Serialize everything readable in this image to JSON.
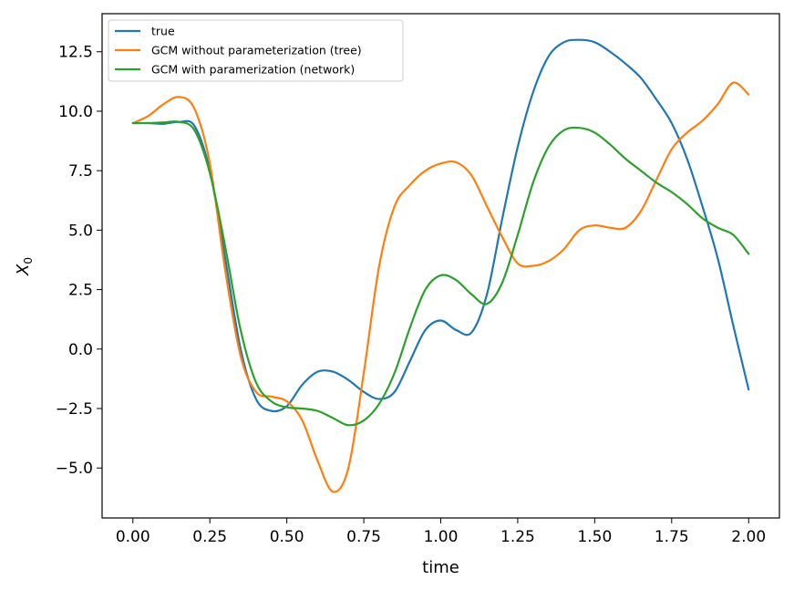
{
  "chart_data": {
    "type": "line",
    "title": "",
    "xlabel": "time",
    "ylabel": "X_0",
    "ylabel_main": "X",
    "ylabel_sub": "0",
    "xlim": [
      -0.1,
      2.1
    ],
    "ylim": [
      -7.1,
      14.1
    ],
    "xticks": [
      0.0,
      0.25,
      0.5,
      0.75,
      1.0,
      1.25,
      1.5,
      1.75,
      2.0
    ],
    "xtick_labels": [
      "0.00",
      "0.25",
      "0.50",
      "0.75",
      "1.00",
      "1.25",
      "1.50",
      "1.75",
      "2.00"
    ],
    "yticks": [
      -5.0,
      -2.5,
      0.0,
      2.5,
      5.0,
      7.5,
      10.0,
      12.5
    ],
    "ytick_labels": [
      "−5.0",
      "−2.5",
      "0.0",
      "2.5",
      "5.0",
      "7.5",
      "10.0",
      "12.5"
    ],
    "grid": false,
    "legend_position": "top-left",
    "series": [
      {
        "name": "true",
        "color": "#1f77b4",
        "points": [
          [
            0.0,
            9.5
          ],
          [
            0.05,
            9.5
          ],
          [
            0.1,
            9.47
          ],
          [
            0.15,
            9.55
          ],
          [
            0.2,
            9.38
          ],
          [
            0.25,
            7.5
          ],
          [
            0.3,
            3.8
          ],
          [
            0.35,
            0.0
          ],
          [
            0.4,
            -2.1
          ],
          [
            0.45,
            -2.6
          ],
          [
            0.5,
            -2.4
          ],
          [
            0.55,
            -1.5
          ],
          [
            0.6,
            -0.95
          ],
          [
            0.65,
            -0.95
          ],
          [
            0.7,
            -1.3
          ],
          [
            0.75,
            -1.8
          ],
          [
            0.8,
            -2.1
          ],
          [
            0.85,
            -1.8
          ],
          [
            0.9,
            -0.5
          ],
          [
            0.95,
            0.8
          ],
          [
            1.0,
            1.2
          ],
          [
            1.05,
            0.8
          ],
          [
            1.1,
            0.7
          ],
          [
            1.15,
            2.3
          ],
          [
            1.2,
            5.5
          ],
          [
            1.25,
            8.5
          ],
          [
            1.3,
            10.8
          ],
          [
            1.35,
            12.3
          ],
          [
            1.4,
            12.9
          ],
          [
            1.45,
            13.0
          ],
          [
            1.5,
            12.9
          ],
          [
            1.55,
            12.5
          ],
          [
            1.6,
            12.0
          ],
          [
            1.65,
            11.4
          ],
          [
            1.7,
            10.5
          ],
          [
            1.75,
            9.5
          ],
          [
            1.8,
            8.0
          ],
          [
            1.85,
            6.0
          ],
          [
            1.9,
            3.8
          ],
          [
            1.95,
            1.0
          ],
          [
            2.0,
            -1.7
          ]
        ]
      },
      {
        "name": "GCM without parameterization (tree)",
        "color": "#ff7f0e",
        "points": [
          [
            0.0,
            9.5
          ],
          [
            0.05,
            9.8
          ],
          [
            0.1,
            10.3
          ],
          [
            0.15,
            10.6
          ],
          [
            0.2,
            10.1
          ],
          [
            0.25,
            7.8
          ],
          [
            0.3,
            3.3
          ],
          [
            0.35,
            -0.3
          ],
          [
            0.4,
            -1.8
          ],
          [
            0.45,
            -2.0
          ],
          [
            0.5,
            -2.2
          ],
          [
            0.55,
            -3.0
          ],
          [
            0.6,
            -4.7
          ],
          [
            0.65,
            -6.0
          ],
          [
            0.7,
            -5.0
          ],
          [
            0.75,
            -1.0
          ],
          [
            0.8,
            3.5
          ],
          [
            0.85,
            6.0
          ],
          [
            0.9,
            6.9
          ],
          [
            0.95,
            7.5
          ],
          [
            1.0,
            7.8
          ],
          [
            1.05,
            7.85
          ],
          [
            1.1,
            7.3
          ],
          [
            1.15,
            6.0
          ],
          [
            1.2,
            4.7
          ],
          [
            1.25,
            3.6
          ],
          [
            1.3,
            3.5
          ],
          [
            1.35,
            3.7
          ],
          [
            1.4,
            4.2
          ],
          [
            1.45,
            5.0
          ],
          [
            1.5,
            5.2
          ],
          [
            1.55,
            5.1
          ],
          [
            1.6,
            5.1
          ],
          [
            1.65,
            5.8
          ],
          [
            1.7,
            7.1
          ],
          [
            1.75,
            8.4
          ],
          [
            1.8,
            9.1
          ],
          [
            1.85,
            9.6
          ],
          [
            1.9,
            10.3
          ],
          [
            1.95,
            11.2
          ],
          [
            2.0,
            10.7
          ]
        ]
      },
      {
        "name": "GCM with paramerization (network)",
        "color": "#2ca02c",
        "points": [
          [
            0.0,
            9.5
          ],
          [
            0.05,
            9.5
          ],
          [
            0.1,
            9.53
          ],
          [
            0.15,
            9.55
          ],
          [
            0.2,
            9.2
          ],
          [
            0.25,
            7.4
          ],
          [
            0.3,
            4.3
          ],
          [
            0.35,
            0.8
          ],
          [
            0.4,
            -1.4
          ],
          [
            0.45,
            -2.2
          ],
          [
            0.5,
            -2.45
          ],
          [
            0.55,
            -2.5
          ],
          [
            0.6,
            -2.6
          ],
          [
            0.65,
            -2.9
          ],
          [
            0.7,
            -3.2
          ],
          [
            0.75,
            -3.0
          ],
          [
            0.8,
            -2.3
          ],
          [
            0.85,
            -1.0
          ],
          [
            0.9,
            0.9
          ],
          [
            0.95,
            2.5
          ],
          [
            1.0,
            3.1
          ],
          [
            1.05,
            2.9
          ],
          [
            1.1,
            2.3
          ],
          [
            1.15,
            1.9
          ],
          [
            1.2,
            2.8
          ],
          [
            1.25,
            4.8
          ],
          [
            1.3,
            7.0
          ],
          [
            1.35,
            8.5
          ],
          [
            1.4,
            9.2
          ],
          [
            1.45,
            9.3
          ],
          [
            1.5,
            9.1
          ],
          [
            1.55,
            8.6
          ],
          [
            1.6,
            8.0
          ],
          [
            1.65,
            7.5
          ],
          [
            1.7,
            7.0
          ],
          [
            1.75,
            6.6
          ],
          [
            1.8,
            6.1
          ],
          [
            1.85,
            5.5
          ],
          [
            1.9,
            5.1
          ],
          [
            1.95,
            4.8
          ],
          [
            2.0,
            4.0
          ]
        ]
      }
    ]
  }
}
